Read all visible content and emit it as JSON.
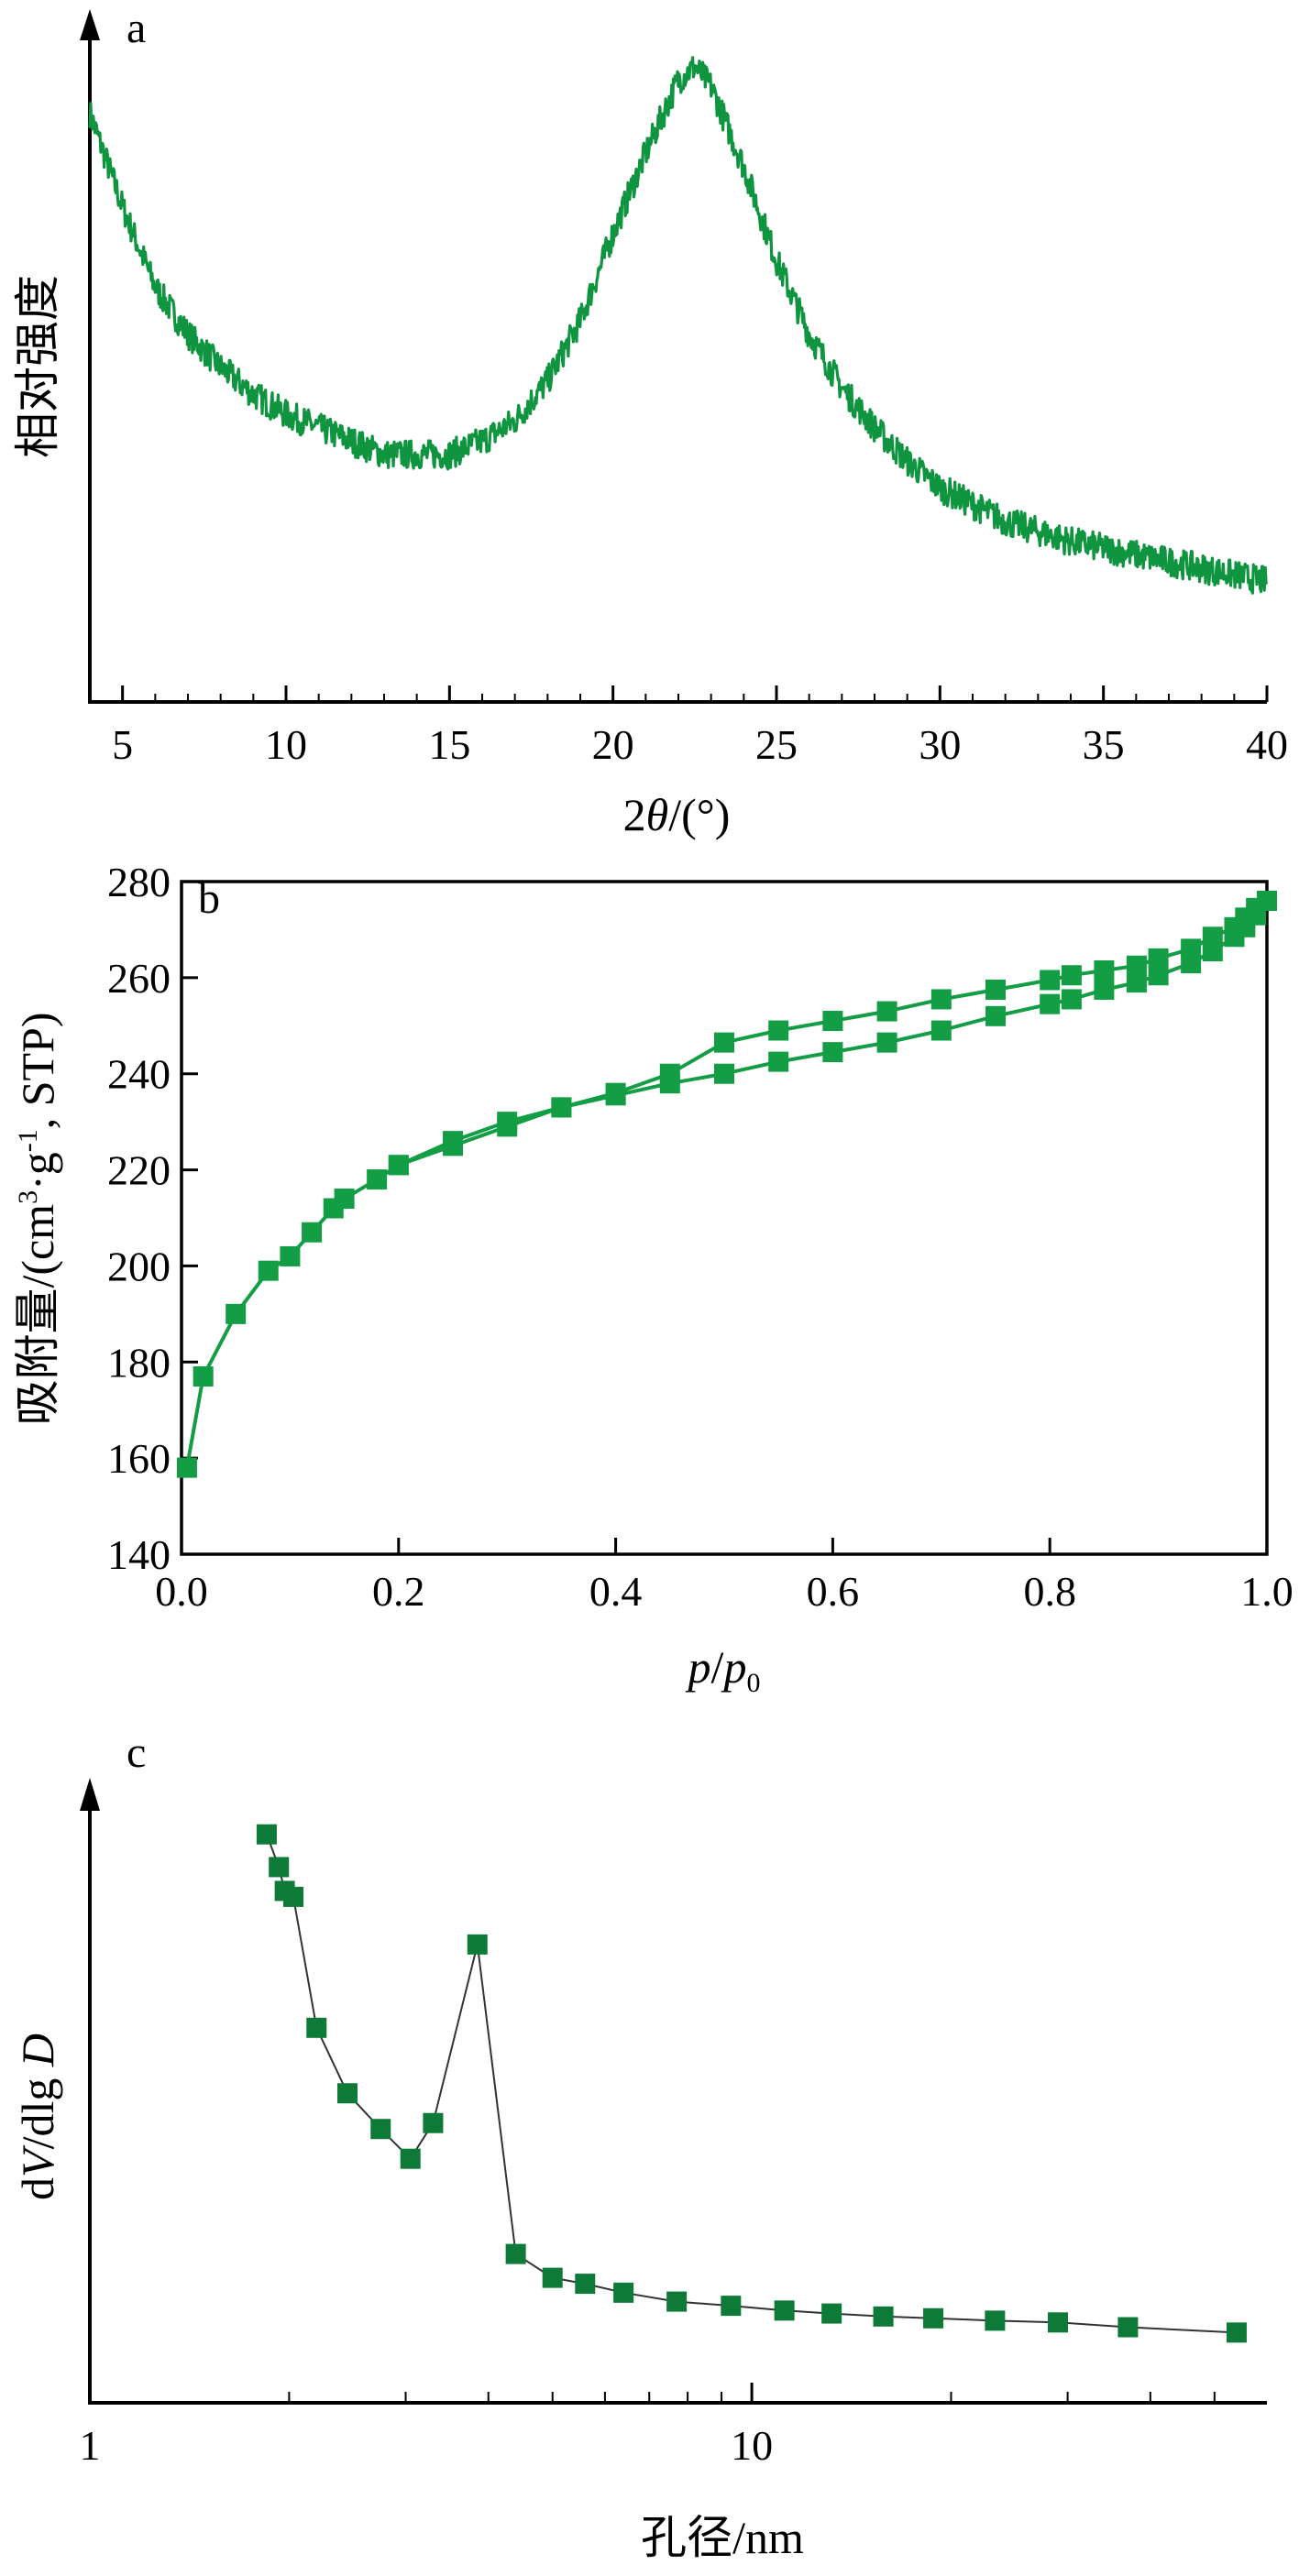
{
  "colors": {
    "xrd_line": "#0f9440",
    "isotherm_line": "#139d45",
    "isotherm_marker": "#139d45",
    "pore_marker": "#0d7a38",
    "pore_line": "#333333",
    "axis": "#000000"
  },
  "chart_data": [
    {
      "panel": "a",
      "type": "line",
      "xlabel_prefix": "2",
      "xlabel_var": "θ",
      "xlabel_suffix": "/(°)",
      "ylabel": "相对强度",
      "xlim": [
        4,
        40
      ],
      "x_ticks": [
        5,
        10,
        15,
        20,
        25,
        30,
        35,
        40
      ],
      "y_ticks_shown": false,
      "noise": 0.022,
      "x": [
        4,
        5,
        6,
        7,
        8,
        9,
        10,
        11,
        12,
        13,
        14,
        15,
        16,
        17,
        18,
        19,
        20,
        21,
        22,
        22.5,
        23,
        24,
        25,
        26,
        27,
        28,
        29,
        30,
        32,
        34,
        36,
        38,
        40
      ],
      "y": [
        0.88,
        0.74,
        0.62,
        0.55,
        0.5,
        0.46,
        0.43,
        0.41,
        0.39,
        0.37,
        0.37,
        0.37,
        0.39,
        0.42,
        0.48,
        0.57,
        0.7,
        0.82,
        0.93,
        0.95,
        0.92,
        0.8,
        0.66,
        0.55,
        0.47,
        0.41,
        0.36,
        0.32,
        0.27,
        0.24,
        0.22,
        0.2,
        0.18
      ]
    },
    {
      "panel": "b",
      "type": "line",
      "xlabel_var1": "p",
      "xlabel_sep": "/",
      "xlabel_var2": "p",
      "xlabel_sub": "0",
      "ylabel_main": "吸附量/(cm",
      "ylabel_sup1": "3",
      "ylabel_mid": "·g",
      "ylabel_sup2": "-1",
      "ylabel_end": ", STP)",
      "xlim": [
        0,
        1
      ],
      "ylim": [
        140,
        280
      ],
      "x_ticks": [
        "0.0",
        "0.2",
        "0.4",
        "0.6",
        "0.8",
        "1.0"
      ],
      "y_ticks": [
        140,
        160,
        180,
        200,
        220,
        240,
        260,
        280
      ],
      "series": [
        {
          "x": [
            0.005,
            0.02,
            0.05,
            0.08,
            0.1,
            0.12,
            0.14,
            0.15,
            0.18,
            0.2,
            0.25,
            0.3,
            0.35,
            0.4,
            0.45,
            0.5,
            0.55,
            0.6,
            0.65,
            0.7,
            0.75,
            0.8,
            0.82,
            0.85,
            0.88,
            0.9,
            0.93,
            0.95,
            0.97,
            0.98,
            0.99,
            1.0
          ],
          "y": [
            158,
            177,
            190,
            199,
            202,
            207,
            212,
            214,
            218,
            221,
            225,
            229,
            233,
            235.5,
            238,
            240,
            242.5,
            244.5,
            246.5,
            249,
            252,
            254.5,
            255.5,
            257.5,
            259,
            260.5,
            263,
            265.5,
            268.5,
            270.5,
            273,
            276
          ]
        },
        {
          "x": [
            1.0,
            0.99,
            0.98,
            0.97,
            0.95,
            0.93,
            0.9,
            0.88,
            0.85,
            0.82,
            0.8,
            0.75,
            0.7,
            0.65,
            0.6,
            0.55,
            0.5,
            0.45,
            0.4,
            0.35,
            0.3,
            0.25,
            0.2
          ],
          "y": [
            276,
            274.5,
            272.5,
            270.5,
            268.5,
            266,
            264,
            262.5,
            261.5,
            260.5,
            259.5,
            257.5,
            255.5,
            253,
            251,
            249,
            246.5,
            240,
            236,
            233,
            230,
            226,
            221
          ]
        }
      ]
    },
    {
      "panel": "c",
      "type": "line",
      "xscale": "log",
      "xlabel": "孔径/nm",
      "ylabel_prefix": "d",
      "ylabel_var1": "V",
      "ylabel_mid": "/dlg ",
      "ylabel_var2": "D",
      "xlim": [
        1,
        60
      ],
      "x_ticks": [
        "1",
        "10"
      ],
      "y_ticks_shown": false,
      "ylim": [
        0,
        1.05
      ],
      "x": [
        1.85,
        1.93,
        1.97,
        2.03,
        2.2,
        2.45,
        2.75,
        3.05,
        3.3,
        3.85,
        4.4,
        5.0,
        5.6,
        6.4,
        7.7,
        9.3,
        11.2,
        13.2,
        15.8,
        18.8,
        23.3,
        29.0,
        37.0,
        54.0
      ],
      "y": [
        0.955,
        0.9,
        0.86,
        0.85,
        0.63,
        0.52,
        0.46,
        0.41,
        0.47,
        0.77,
        0.25,
        0.21,
        0.2,
        0.185,
        0.17,
        0.163,
        0.155,
        0.15,
        0.145,
        0.142,
        0.138,
        0.135,
        0.127,
        0.118
      ]
    }
  ]
}
